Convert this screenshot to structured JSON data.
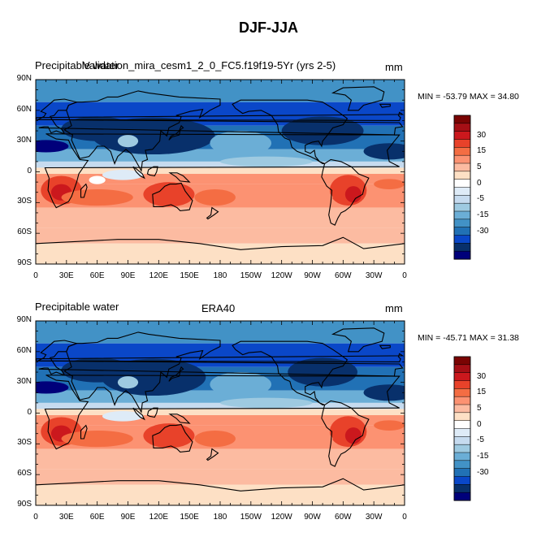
{
  "figure": {
    "title": "DJF-JJA",
    "colorbar_levels": [
      "30",
      "15",
      "5",
      "0",
      "-5",
      "-15",
      "-30"
    ],
    "colors": {
      "warm": [
        "#7a0403",
        "#a50f15",
        "#cb181d",
        "#e8422a",
        "#f46d43",
        "#fc9272",
        "#fcbba1",
        "#fde0c5"
      ],
      "neutral": "#ffffff",
      "cool": [
        "#deebf7",
        "#c6dbef",
        "#9ecae1",
        "#6baed6",
        "#4292c6",
        "#2171b5",
        "#0a47c8",
        "#08306b",
        "#00007a"
      ]
    }
  },
  "panels": [
    {
      "left_title": "Precipitable water",
      "center_title": "Validation_mira_cesm1_2_0_FC5.f19f19-5Yr (yrs 2-5)",
      "units": "mm",
      "minmax": "MIN = -53.79 MAX =  34.80"
    },
    {
      "left_title": "Precipitable water",
      "center_title": "ERA40",
      "units": "mm",
      "minmax": "MIN = -45.71 MAX =  31.38"
    }
  ],
  "axes": {
    "lat_labels": [
      "90N",
      "60N",
      "30N",
      "0",
      "30S",
      "60S",
      "90S"
    ],
    "lon_labels": [
      "0",
      "30E",
      "60E",
      "90E",
      "120E",
      "150E",
      "180",
      "150W",
      "120W",
      "90W",
      "60W",
      "30W",
      "0"
    ]
  }
}
